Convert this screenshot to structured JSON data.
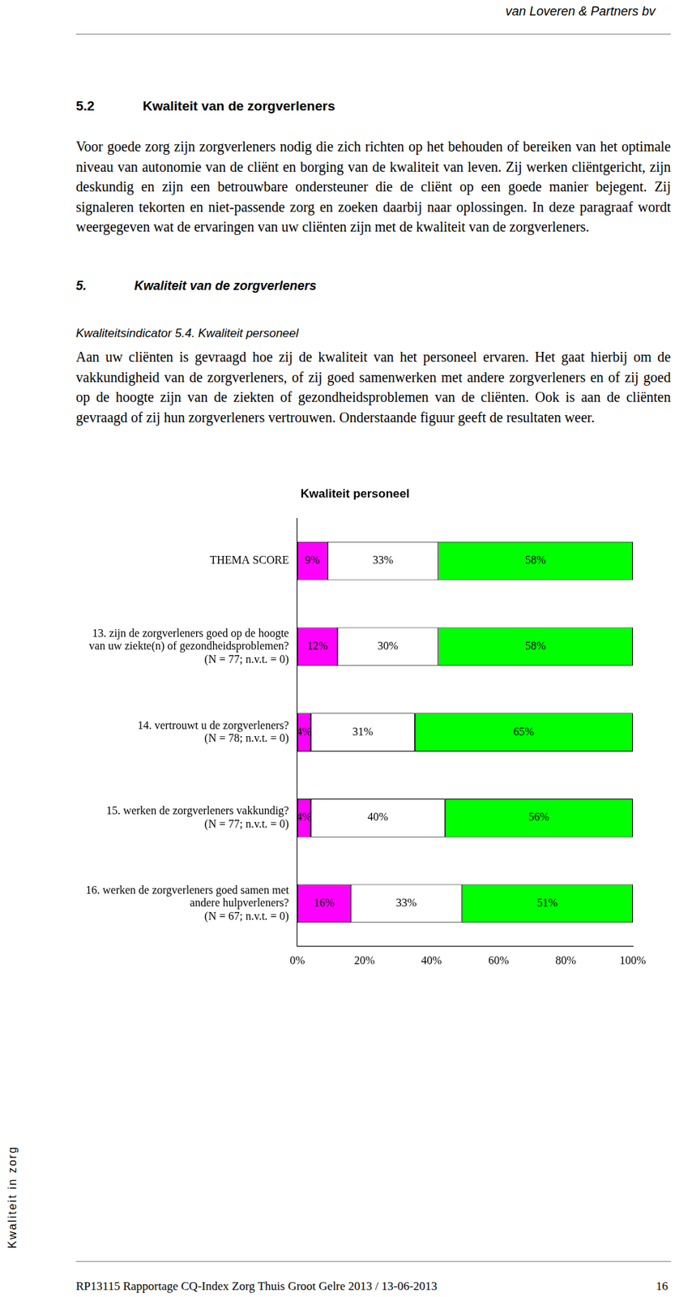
{
  "header": {
    "company": "van Loveren & Partners bv"
  },
  "section": {
    "number": "5.2",
    "title": "Kwaliteit van de zorgverleners",
    "text": "Voor goede zorg zijn zorgverleners nodig die zich richten op het behouden of bereiken van het optimale niveau van autonomie van de cliënt en borging van de kwaliteit van leven. Zij werken cliëntgericht, zijn deskundig en zijn een betrouwbare ondersteuner die de cliënt op een goede manier bejegent. Zij signaleren tekorten en niet-passende zorg en zoeken daarbij naar oplossingen. In deze paragraaf wordt weergegeven wat de ervaringen van uw cliënten zijn met de kwaliteit van de zorgverleners."
  },
  "subsection": {
    "number": "5.",
    "title": "Kwaliteit van de zorgverleners"
  },
  "indicator": {
    "label": "Kwaliteitsindicator 5.4. Kwaliteit personeel",
    "text": "Aan uw cliënten is gevraagd hoe zij de kwaliteit van het personeel ervaren. Het gaat hierbij om de vakkundigheid van de zorgverleners, of zij goed samenwerken met andere zorgverleners en of zij goed op de hoogte zijn van de ziekten of gezondheidsproblemen van de cliënten. Ook is aan de cliënten gevraagd of zij hun zorgverleners vertrouwen. Onderstaande figuur geeft de resultaten weer."
  },
  "chart_data": {
    "type": "bar",
    "orientation": "horizontal",
    "stacked": true,
    "title": "Kwaliteit personeel",
    "categories": [
      "THEMA SCORE",
      [
        "13. zijn de zorgverleners goed op de hoogte",
        "van uw ziekte(n) of gezondheidsproblemen?",
        "(N = 77; n.v.t. = 0)"
      ],
      [
        "14. vertrouwt u de zorgverleners?",
        "(N = 78; n.v.t. = 0)"
      ],
      [
        "15. werken de zorgverleners vakkundig?",
        "(N = 77; n.v.t. = 0)"
      ],
      [
        "16. werken de zorgverleners goed samen met",
        "andere hulpverleners?",
        "(N = 67; n.v.t. = 0)"
      ]
    ],
    "series": [
      {
        "color": "#ff00ff",
        "values": [
          9,
          12,
          4,
          4,
          16
        ],
        "value_labels": [
          "9%",
          "12%",
          "4%",
          "4%",
          "16%"
        ]
      },
      {
        "color": "#ffffff",
        "values": [
          33,
          30,
          31,
          40,
          33
        ],
        "value_labels": [
          "33%",
          "30%",
          "31%",
          "40%",
          "33%"
        ]
      },
      {
        "color": "#00ff00",
        "values": [
          58,
          58,
          65,
          56,
          51
        ],
        "value_labels": [
          "58%",
          "58%",
          "65%",
          "56%",
          "51%"
        ]
      }
    ],
    "xlim": [
      0,
      100
    ],
    "xticks": [
      {
        "value": 0,
        "label": "0%"
      },
      {
        "value": 20,
        "label": "20%"
      },
      {
        "value": 40,
        "label": "40%"
      },
      {
        "value": 60,
        "label": "60%"
      },
      {
        "value": 80,
        "label": "80%"
      },
      {
        "value": 100,
        "label": "100%"
      }
    ],
    "grid": false,
    "data_labels": true
  },
  "side_text": "Kwaliteit in zorg",
  "footer": {
    "text": "RP13115 Rapportage CQ-Index Zorg Thuis Groot Gelre 2013 / 13-06-2013",
    "page": 16
  }
}
